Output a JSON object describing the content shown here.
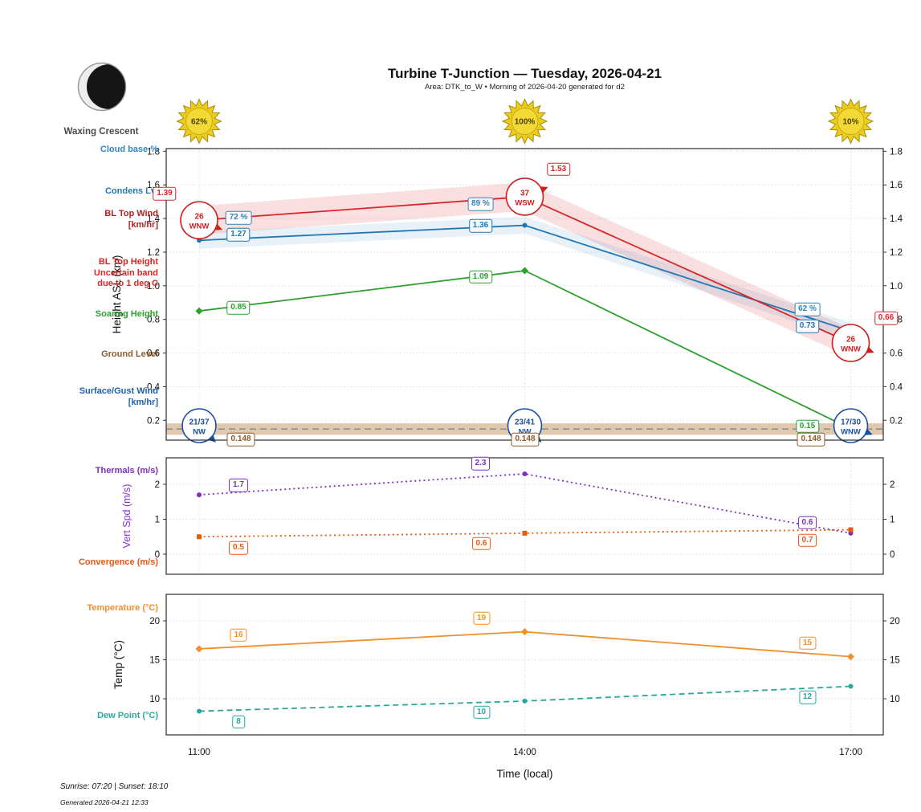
{
  "header": {
    "title": "Turbine T-Junction — Tuesday, 2026-04-21",
    "subtitle": "Area: DTK_to_W • Morning of 2026-04-20 generated for d2"
  },
  "moon": {
    "phase_label": "Waxing Crescent"
  },
  "sun": {
    "values": [
      "62%",
      "100%",
      "10%"
    ]
  },
  "colors": {
    "cloud_pct": "#2e86c1",
    "bl_wind_circle": "#cf2020",
    "surface_wind_circle": "#1a4f9c",
    "red_band": "#d62728",
    "ground_band": "#c49a6c"
  },
  "row_labels": [
    {
      "id": "cloud-base",
      "text": "Cloud base %",
      "color": "#2e86c1"
    },
    {
      "id": "condens",
      "text": "Condens Lvl",
      "color": "#1f77b4"
    },
    {
      "id": "bl-top-wind",
      "text": "BL Top Wind\n[km/hr]",
      "color": "#b22222"
    },
    {
      "id": "bl-top-height",
      "text": "BL Top Height\nUncertain band\ndue to 1 deg C",
      "color": "#d62728"
    },
    {
      "id": "soaring",
      "text": "Soaring Height",
      "color": "#2ca02c"
    },
    {
      "id": "ground",
      "text": "Ground Level",
      "color": "#8b5a2b"
    },
    {
      "id": "surface-wind",
      "text": "Surface/Gust Wind\n[km/hr]",
      "color": "#1f5fa8"
    },
    {
      "id": "thermals",
      "text": "Thermals (m/s)",
      "color": "#7c2fbe"
    },
    {
      "id": "convergence",
      "text": "Convergence (m/s)",
      "color": "#e8590c"
    },
    {
      "id": "temperature",
      "text": "Temperature (°C)",
      "color": "#f28e2b"
    },
    {
      "id": "dew-point",
      "text": "Dew Point (°C)",
      "color": "#2aa79d"
    }
  ],
  "chart_data": [
    {
      "type": "line",
      "x": [
        "11:00",
        "14:00",
        "17:00"
      ],
      "ylabel": "Height ASL (km)",
      "ylim": [
        0.08,
        1.82
      ],
      "yticks": [
        0.2,
        0.4,
        0.6,
        0.8,
        1.0,
        1.2,
        1.4,
        1.6,
        1.8
      ],
      "grid": true,
      "series": [
        {
          "name": "BL Top Height",
          "values": [
            1.39,
            1.53,
            0.66
          ],
          "color": "#d62728",
          "band": 0.085,
          "marker": "circle"
        },
        {
          "name": "Condens Lvl",
          "values": [
            1.27,
            1.36,
            0.73
          ],
          "color": "#1f77b4",
          "band": 0.05,
          "marker": "circle"
        },
        {
          "name": "Soaring Height",
          "values": [
            0.85,
            1.09,
            0.15
          ],
          "color": "#2ca02c",
          "marker": "diamond"
        },
        {
          "name": "Ground Level",
          "values": [
            0.148,
            0.148,
            0.148
          ],
          "color": "#8b5a2b",
          "style": "dashed",
          "band": 0.034
        }
      ],
      "cloud_base_pct": [
        "72 %",
        "89 %",
        "62 %"
      ],
      "bl_top_wind": [
        {
          "speed": "26",
          "dir": "WNW"
        },
        {
          "speed": "37",
          "dir": "WSW"
        },
        {
          "speed": "26",
          "dir": "WNW"
        }
      ],
      "surface_gust_wind": [
        {
          "speed": "21/37",
          "dir": "NW"
        },
        {
          "speed": "23/41",
          "dir": "NW"
        },
        {
          "speed": "17/30",
          "dir": "WNW"
        }
      ],
      "ground_labels": [
        "0.148",
        "0.148",
        "0.148"
      ]
    },
    {
      "type": "line",
      "x": [
        "11:00",
        "14:00",
        "17:00"
      ],
      "ylabel": "Vert Spd (m/s)",
      "ylabel_color": "#8a2be2",
      "ylim": [
        -0.6,
        2.75
      ],
      "yticks": [
        0,
        1,
        2
      ],
      "grid": true,
      "series": [
        {
          "name": "Thermals",
          "values": [
            1.7,
            2.3,
            0.6
          ],
          "color": "#7c2fbe",
          "style": "dotted",
          "marker": "circle"
        },
        {
          "name": "Convergence",
          "values": [
            0.5,
            0.6,
            0.7
          ],
          "color": "#e8590c",
          "style": "dotted",
          "marker": "square"
        }
      ]
    },
    {
      "type": "line",
      "x": [
        "11:00",
        "14:00",
        "17:00"
      ],
      "xlabel": "Time (local)",
      "ylabel": "Temp (°C)",
      "ylim": [
        5.4,
        23.4
      ],
      "yticks": [
        10,
        15,
        20
      ],
      "grid": true,
      "series": [
        {
          "name": "Temperature",
          "values": [
            16.4,
            18.6,
            15.4
          ],
          "labels": [
            "16",
            "19",
            "15"
          ],
          "color": "#f28e2b",
          "marker": "diamond"
        },
        {
          "name": "Dew Point",
          "values": [
            8.4,
            9.7,
            11.6
          ],
          "labels": [
            "8",
            "10",
            "12"
          ],
          "color": "#2aa79d",
          "style": "dashed",
          "marker": "circle"
        }
      ]
    }
  ],
  "footer": {
    "sun_times": "Sunrise: 07:20 | Sunset: 18:10",
    "generated": "Generated 2026-04-21 12:33"
  }
}
